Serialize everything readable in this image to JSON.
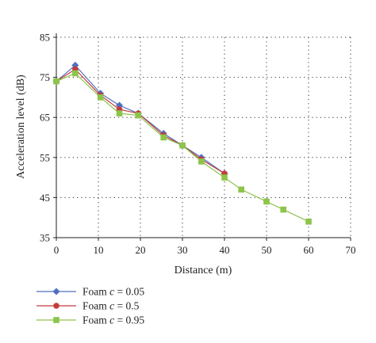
{
  "chart_data": {
    "type": "line",
    "xlabel": "Distance (m)",
    "ylabel": "Acceleration level (dB)",
    "xlim": [
      0,
      70
    ],
    "ylim": [
      35,
      85
    ],
    "xticks": [
      0,
      10,
      20,
      30,
      40,
      50,
      60,
      70
    ],
    "yticks": [
      35,
      45,
      55,
      65,
      75,
      85
    ],
    "grid": "dotted",
    "legend_position": "bottom-left",
    "series": [
      {
        "name_prefix": "Foam",
        "name_var": "c",
        "name_value": "= 0.05",
        "color": "#4f6fbf",
        "marker": "diamond",
        "x": [
          0,
          4.5,
          10.5,
          15,
          19.5,
          25.5,
          30,
          34.5,
          40
        ],
        "y": [
          74,
          78,
          71,
          68,
          66,
          61,
          58,
          55,
          51
        ]
      },
      {
        "name_prefix": "Foam",
        "name_var": "c",
        "name_value": "= 0.5",
        "color": "#c43c3c",
        "marker": "circle",
        "x": [
          0,
          4.5,
          10.5,
          15,
          19.5,
          25.5,
          30,
          34.5,
          40
        ],
        "y": [
          74,
          77,
          70.5,
          67,
          66,
          60.5,
          58,
          54.5,
          51
        ]
      },
      {
        "name_prefix": "Foam",
        "name_var": "c",
        "name_value": "= 0.95",
        "color": "#8dc44a",
        "marker": "square",
        "x": [
          0,
          4.5,
          10.5,
          15,
          19.5,
          25.5,
          30,
          34.5,
          40,
          44,
          50,
          54,
          60
        ],
        "y": [
          74,
          76,
          70,
          66,
          65.5,
          60,
          58,
          54,
          50,
          47,
          44,
          42,
          39
        ]
      }
    ]
  }
}
